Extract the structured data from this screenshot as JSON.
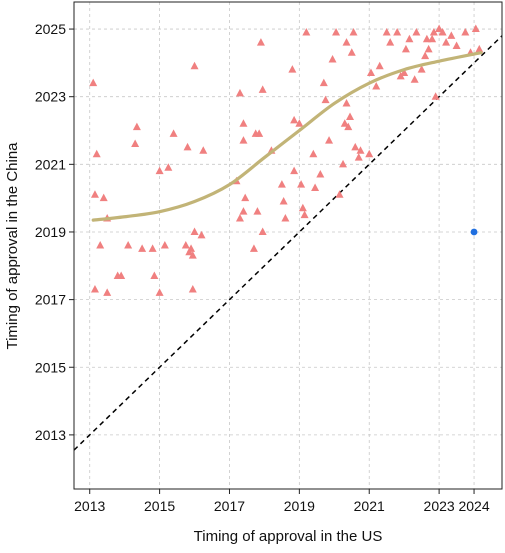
{
  "chart_data": {
    "type": "scatter",
    "title": "",
    "xlabel": "Timing of approval in the US",
    "ylabel": "Timing of approval in the China",
    "xlim": [
      2012.55,
      2024.8
    ],
    "ylim": [
      2011.4,
      2025.8
    ],
    "xticks": [
      2013,
      2015,
      2017,
      2019,
      2021,
      2023,
      2024
    ],
    "yticks": [
      2013,
      2015,
      2017,
      2019,
      2021,
      2023,
      2025
    ],
    "grid": true,
    "legend": "none",
    "colors": {
      "points": "#f08080",
      "fit_line": "#c2b477",
      "highlight": "#1f6fe0",
      "diagonal": "#000000",
      "grid": "#c8c8c8"
    },
    "series": [
      {
        "marker": "triangle",
        "points": [
          [
            2013.1,
            2023.4
          ],
          [
            2013.2,
            2021.3
          ],
          [
            2013.15,
            2020.1
          ],
          [
            2013.4,
            2020.0
          ],
          [
            2013.3,
            2018.6
          ],
          [
            2013.5,
            2019.4
          ],
          [
            2013.15,
            2017.3
          ],
          [
            2013.5,
            2017.2
          ],
          [
            2013.8,
            2017.7
          ],
          [
            2013.9,
            2017.7
          ],
          [
            2014.1,
            2018.6
          ],
          [
            2014.3,
            2021.6
          ],
          [
            2014.35,
            2022.1
          ],
          [
            2014.5,
            2018.5
          ],
          [
            2014.8,
            2018.5
          ],
          [
            2014.85,
            2017.7
          ],
          [
            2015.0,
            2017.2
          ],
          [
            2015.0,
            2020.8
          ],
          [
            2015.25,
            2020.9
          ],
          [
            2015.15,
            2018.6
          ],
          [
            2015.4,
            2021.9
          ],
          [
            2015.8,
            2021.5
          ],
          [
            2015.75,
            2018.6
          ],
          [
            2015.85,
            2018.4
          ],
          [
            2015.95,
            2018.3
          ],
          [
            2015.9,
            2018.5
          ],
          [
            2016.0,
            2019.0
          ],
          [
            2015.95,
            2017.3
          ],
          [
            2016.0,
            2023.9
          ],
          [
            2016.25,
            2021.4
          ],
          [
            2016.2,
            2018.9
          ],
          [
            2017.2,
            2020.5
          ],
          [
            2017.3,
            2023.1
          ],
          [
            2017.4,
            2022.2
          ],
          [
            2017.3,
            2019.4
          ],
          [
            2017.4,
            2019.6
          ],
          [
            2017.4,
            2021.7
          ],
          [
            2017.45,
            2020.0
          ],
          [
            2017.7,
            2018.5
          ],
          [
            2017.8,
            2019.6
          ],
          [
            2017.75,
            2021.9
          ],
          [
            2017.85,
            2021.9
          ],
          [
            2017.9,
            2024.6
          ],
          [
            2017.95,
            2023.2
          ],
          [
            2017.95,
            2019.0
          ],
          [
            2018.2,
            2021.4
          ],
          [
            2018.5,
            2020.4
          ],
          [
            2018.55,
            2019.9
          ],
          [
            2018.6,
            2019.4
          ],
          [
            2018.8,
            2023.8
          ],
          [
            2018.85,
            2020.8
          ],
          [
            2018.85,
            2022.3
          ],
          [
            2019.0,
            2022.2
          ],
          [
            2019.05,
            2020.4
          ],
          [
            2019.1,
            2019.7
          ],
          [
            2019.15,
            2019.5
          ],
          [
            2019.2,
            2024.9
          ],
          [
            2019.4,
            2021.3
          ],
          [
            2019.45,
            2020.3
          ],
          [
            2019.6,
            2020.7
          ],
          [
            2019.7,
            2023.4
          ],
          [
            2019.75,
            2022.9
          ],
          [
            2019.85,
            2021.7
          ],
          [
            2019.95,
            2024.1
          ],
          [
            2020.05,
            2024.9
          ],
          [
            2020.15,
            2020.1
          ],
          [
            2020.25,
            2021.0
          ],
          [
            2020.3,
            2022.2
          ],
          [
            2020.35,
            2022.8
          ],
          [
            2020.35,
            2024.6
          ],
          [
            2020.4,
            2022.1
          ],
          [
            2020.45,
            2022.4
          ],
          [
            2020.5,
            2024.3
          ],
          [
            2020.55,
            2024.9
          ],
          [
            2020.6,
            2021.5
          ],
          [
            2020.7,
            2021.2
          ],
          [
            2020.75,
            2021.4
          ],
          [
            2021.0,
            2021.3
          ],
          [
            2021.05,
            2023.7
          ],
          [
            2021.2,
            2023.3
          ],
          [
            2021.3,
            2023.9
          ],
          [
            2021.5,
            2024.9
          ],
          [
            2021.6,
            2024.6
          ],
          [
            2021.8,
            2024.9
          ],
          [
            2021.9,
            2023.6
          ],
          [
            2022.0,
            2023.7
          ],
          [
            2022.05,
            2024.4
          ],
          [
            2022.15,
            2024.7
          ],
          [
            2022.3,
            2023.5
          ],
          [
            2022.35,
            2024.9
          ],
          [
            2022.5,
            2023.8
          ],
          [
            2022.6,
            2024.2
          ],
          [
            2022.65,
            2024.7
          ],
          [
            2022.7,
            2024.4
          ],
          [
            2022.8,
            2024.7
          ],
          [
            2022.85,
            2024.9
          ],
          [
            2022.9,
            2023.0
          ],
          [
            2023.0,
            2025.0
          ],
          [
            2023.1,
            2024.9
          ],
          [
            2023.2,
            2024.6
          ],
          [
            2023.35,
            2024.8
          ],
          [
            2023.5,
            2024.5
          ],
          [
            2023.75,
            2024.9
          ],
          [
            2023.9,
            2024.3
          ],
          [
            2024.05,
            2025.0
          ],
          [
            2024.15,
            2024.4
          ]
        ]
      },
      {
        "marker": "circle",
        "points": [
          [
            2024.0,
            2019.0
          ]
        ]
      }
    ],
    "fit_line": [
      [
        2013.1,
        2019.35
      ],
      [
        2014.0,
        2019.45
      ],
      [
        2015.0,
        2019.6
      ],
      [
        2016.0,
        2019.9
      ],
      [
        2017.0,
        2020.4
      ],
      [
        2018.0,
        2021.2
      ],
      [
        2019.0,
        2022.0
      ],
      [
        2020.0,
        2022.8
      ],
      [
        2021.0,
        2023.4
      ],
      [
        2022.0,
        2023.8
      ],
      [
        2023.0,
        2024.05
      ],
      [
        2024.2,
        2024.3
      ]
    ],
    "diagonal": [
      [
        2012.55,
        2012.55
      ],
      [
        2024.8,
        2024.8
      ]
    ]
  }
}
